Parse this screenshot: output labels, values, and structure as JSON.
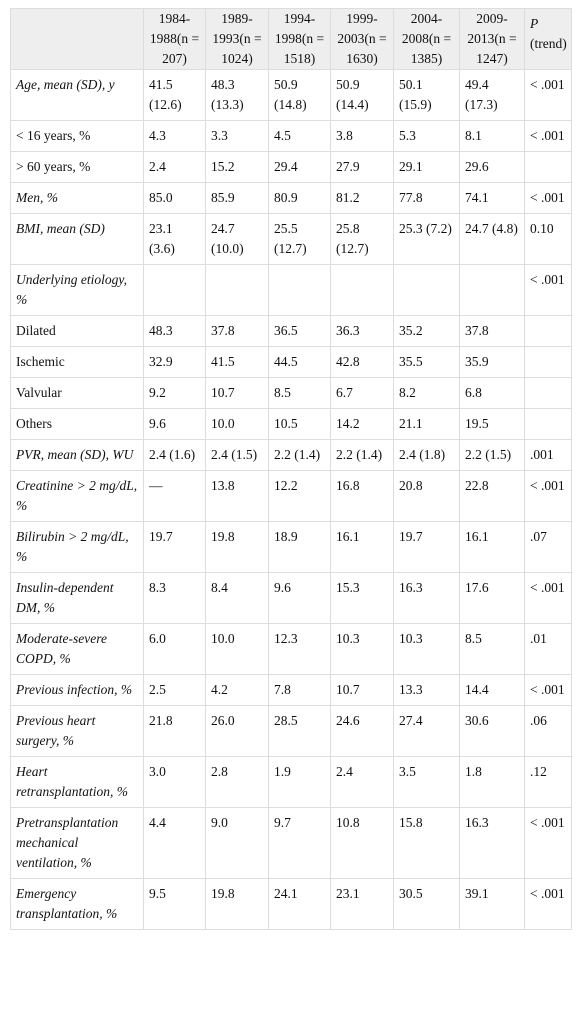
{
  "table": {
    "years": [
      "1984-1988(n = 207)",
      "1989-1993(n = 1024)",
      "1994-1998(n = 1518)",
      "1999-2003(n = 1630)",
      "2004-2008(n = 1385)",
      "2009-2013(n = 1247)"
    ],
    "p_trend": {
      "symbol": "P",
      "label": "(trend)"
    },
    "rows": [
      {
        "label": "Age, mean (SD), y",
        "cells": [
          "41.5 (12.6)",
          "48.3 (13.3)",
          "50.9 (14.8)",
          "50.9 (14.4)",
          "50.1 (15.9)",
          "49.4 (17.3)",
          "< .001"
        ]
      },
      {
        "label": "< 16 years, %",
        "indent": true,
        "cells": [
          "4.3",
          "3.3",
          "4.5",
          "3.8",
          "5.3",
          "8.1",
          "< .001"
        ]
      },
      {
        "label": "> 60 years, %",
        "indent": true,
        "cells": [
          "2.4",
          "15.2",
          "29.4",
          "27.9",
          "29.1",
          "29.6",
          null
        ]
      },
      {
        "label": "Men, %",
        "cells": [
          "85.0",
          "85.9",
          "80.9",
          "81.2",
          "77.8",
          "74.1",
          "< .001"
        ]
      },
      {
        "label": "BMI, mean (SD)",
        "cells": [
          "23.1 (3.6)",
          "24.7 (10.0)",
          "25.5 (12.7)",
          "25.8 (12.7)",
          "25.3 (7.2)",
          "24.7 (4.8)",
          "0.10"
        ]
      },
      {
        "label": "Underlying etiology, %",
        "cells": [
          null,
          null,
          null,
          null,
          null,
          null,
          "< .001"
        ]
      },
      {
        "label": "Dilated",
        "indent": true,
        "cells": [
          "48.3",
          "37.8",
          "36.5",
          "36.3",
          "35.2",
          "37.8",
          null
        ]
      },
      {
        "label": "Ischemic",
        "indent": true,
        "cells": [
          "32.9",
          "41.5",
          "44.5",
          "42.8",
          "35.5",
          "35.9",
          null
        ]
      },
      {
        "label": "Valvular",
        "indent": true,
        "cells": [
          "9.2",
          "10.7",
          "8.5",
          "6.7",
          "8.2",
          "6.8",
          null
        ]
      },
      {
        "label": "Others",
        "indent": true,
        "cells": [
          "9.6",
          "10.0",
          "10.5",
          "14.2",
          "21.1",
          "19.5",
          null
        ]
      },
      {
        "label": "PVR, mean (SD), WU",
        "cells": [
          "2.4 (1.6)",
          "2.4 (1.5)",
          "2.2 (1.4)",
          "2.2 (1.4)",
          "2.4 (1.8)",
          "2.2 (1.5)",
          ".001"
        ]
      },
      {
        "label": "Creatinine > 2 mg/dL, %",
        "cells": [
          "—",
          "13.8",
          "12.2",
          "16.8",
          "20.8",
          "22.8",
          "< .001"
        ]
      },
      {
        "label": "Bilirubin > 2 mg/dL, %",
        "cells": [
          "19.7",
          "19.8",
          "18.9",
          "16.1",
          "19.7",
          "16.1",
          ".07"
        ]
      },
      {
        "label": "Insulin-dependent DM, %",
        "cells": [
          "8.3",
          "8.4",
          "9.6",
          "15.3",
          "16.3",
          "17.6",
          "< .001"
        ]
      },
      {
        "label": "Moderate-severe COPD, %",
        "cells": [
          "6.0",
          "10.0",
          "12.3",
          "10.3",
          "10.3",
          "8.5",
          ".01"
        ]
      },
      {
        "label": "Previous infection, %",
        "cells": [
          "2.5",
          "4.2",
          "7.8",
          "10.7",
          "13.3",
          "14.4",
          "< .001"
        ]
      },
      {
        "label": "Previous heart surgery, %",
        "cells": [
          "21.8",
          "26.0",
          "28.5",
          "24.6",
          "27.4",
          "30.6",
          ".06"
        ]
      },
      {
        "label": "Heart retransplantation, %",
        "cells": [
          "3.0",
          "2.8",
          "1.9",
          "2.4",
          "3.5",
          "1.8",
          ".12"
        ]
      },
      {
        "label": "Pretransplantation mechanical ventilation, %",
        "cells": [
          "4.4",
          "9.0",
          "9.7",
          "10.8",
          "15.8",
          "16.3",
          "< .001"
        ]
      },
      {
        "label": "Emergency transplantation, %",
        "cells": [
          "9.5",
          "19.8",
          "24.1",
          "23.1",
          "30.5",
          "39.1",
          "< .001"
        ]
      }
    ]
  }
}
